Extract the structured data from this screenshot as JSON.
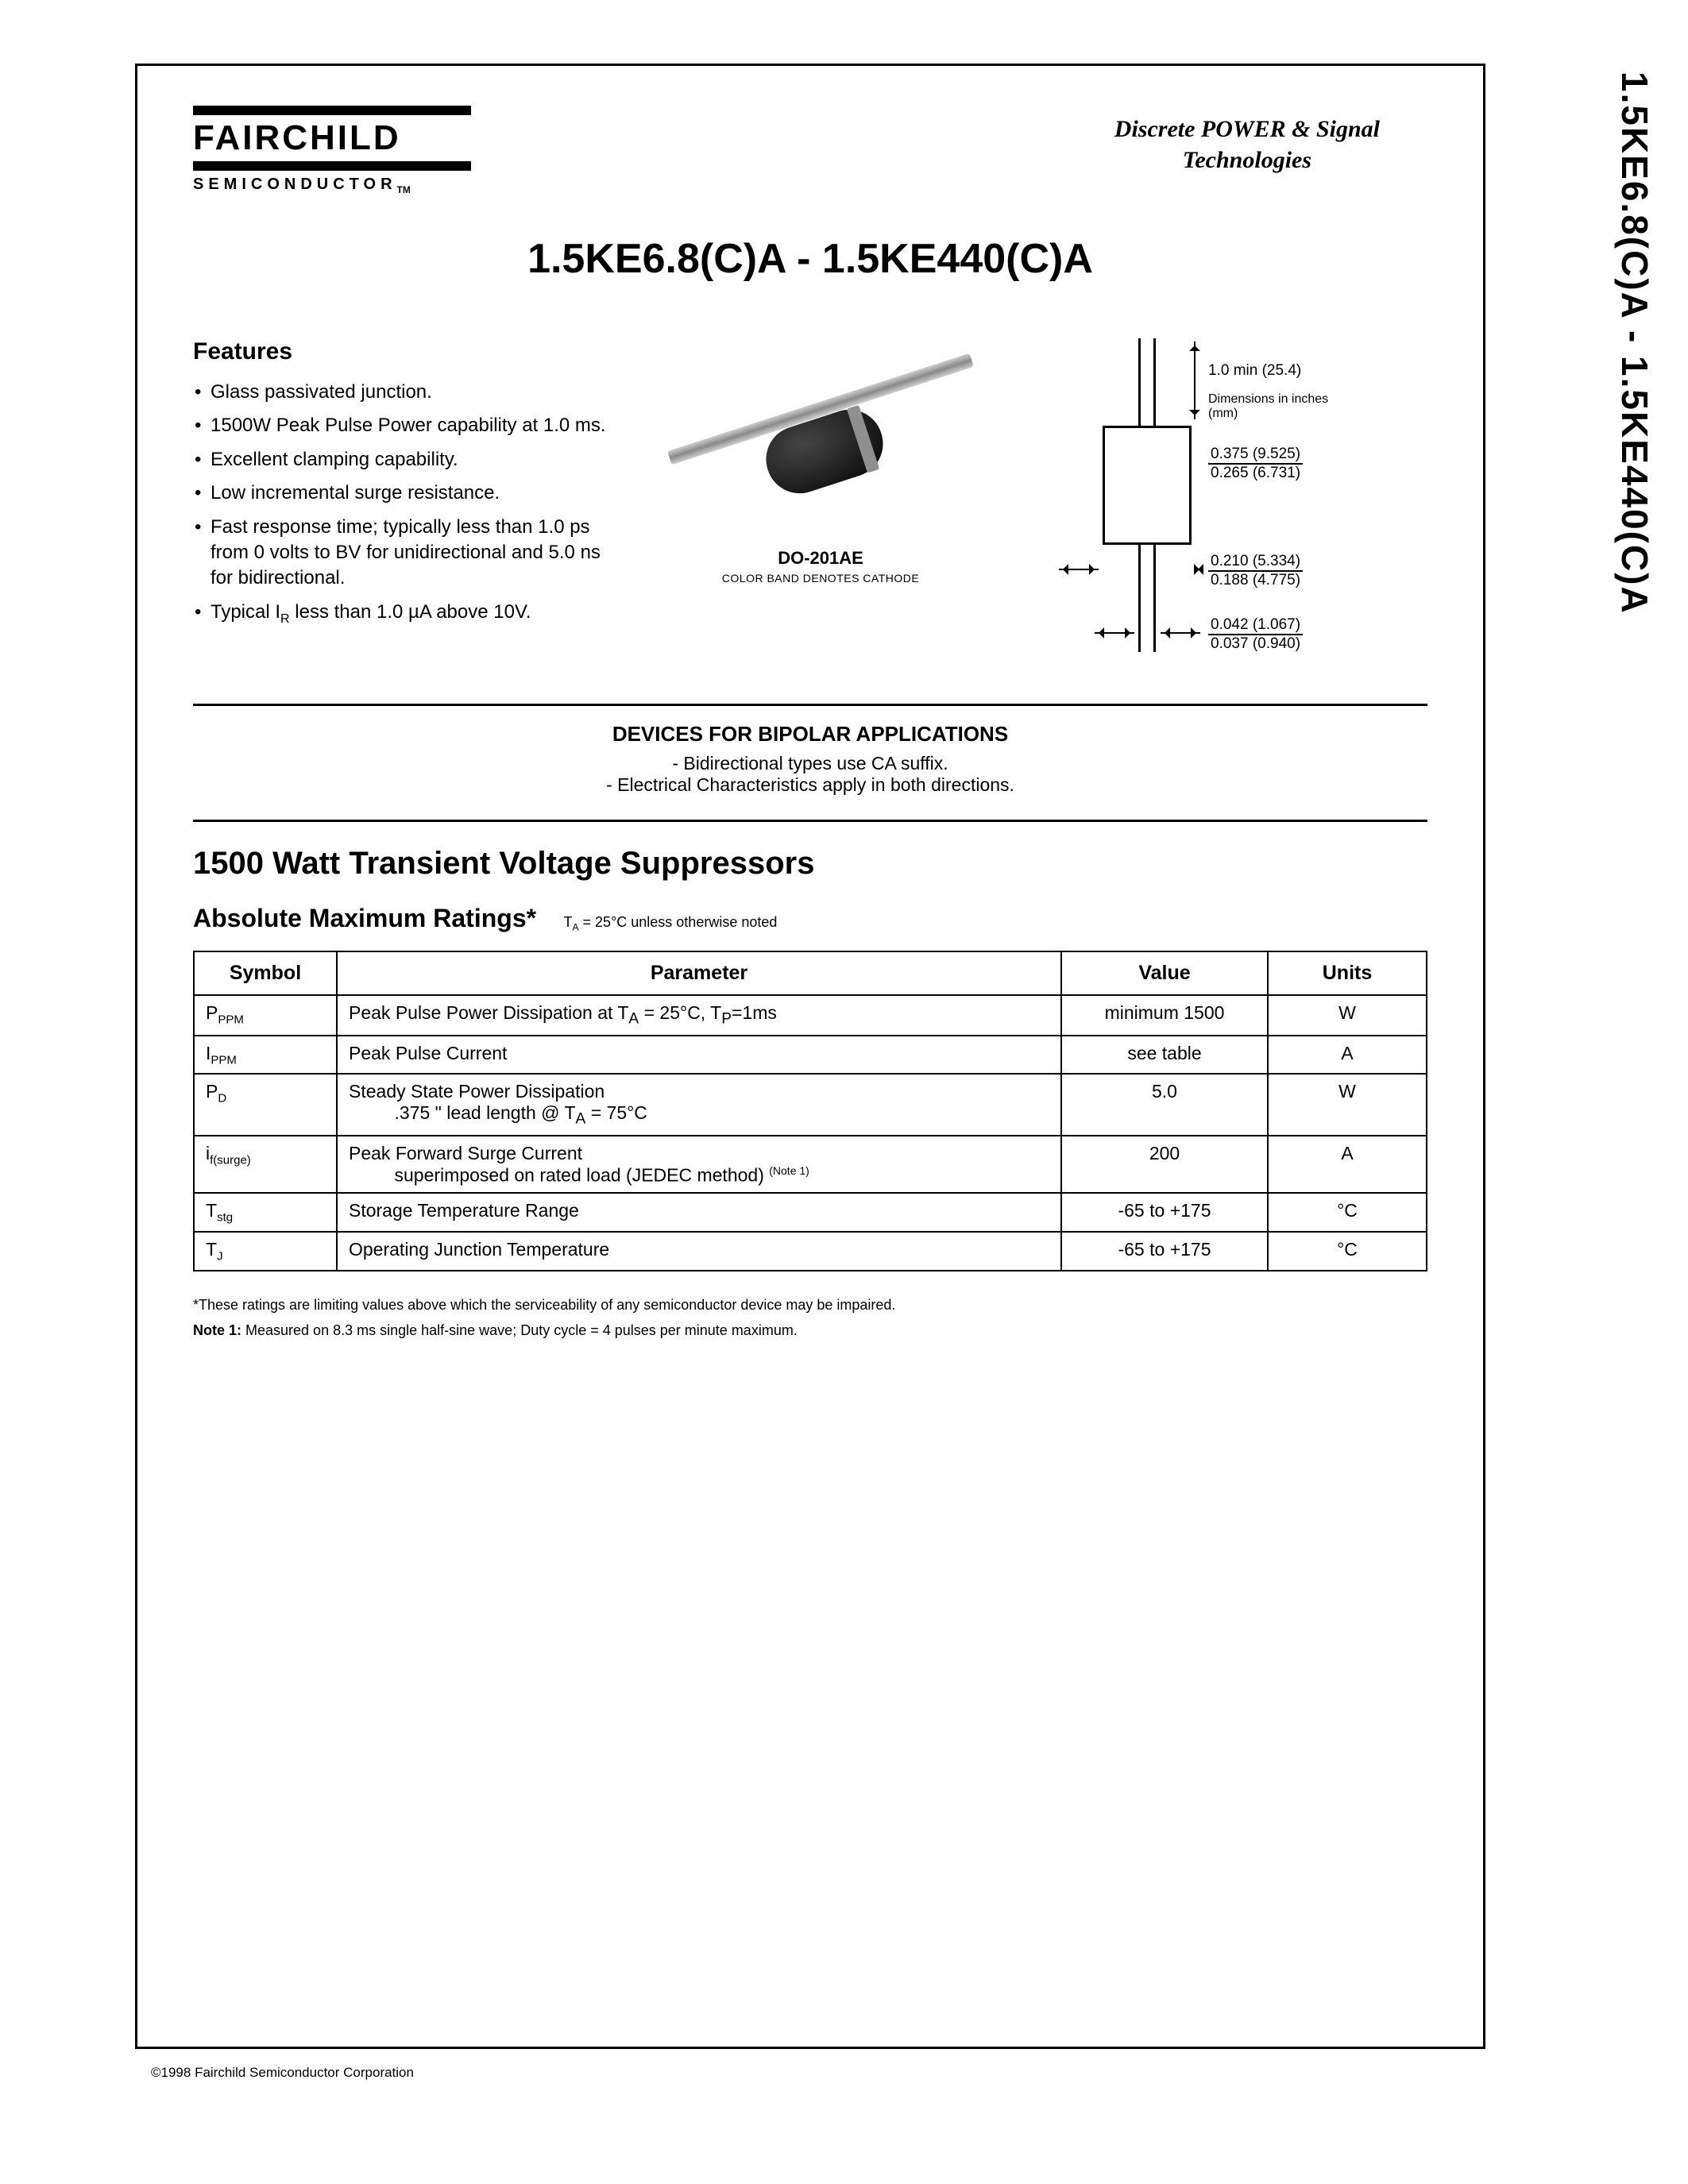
{
  "sideTitle": "1.5KE6.8(C)A - 1.5KE440(C)A",
  "logo": {
    "brand": "FAIRCHILD",
    "sub": "SEMICONDUCTOR",
    "tm": "TM"
  },
  "headerRight": {
    "line1": "Discrete POWER & Signal",
    "line2": "Technologies"
  },
  "title": "1.5KE6.8(C)A - 1.5KE440(C)A",
  "featuresHeading": "Features",
  "features": [
    "Glass passivated junction.",
    "1500W Peak Pulse Power capability at 1.0 ms.",
    "Excellent clamping capability.",
    "Low incremental surge resistance.",
    "Fast response time; typically less than 1.0 ps from 0 volts to BV for unidirectional and 5.0 ns for bidirectional.",
    "Typical IR less than 1.0 µA above 10V."
  ],
  "package": {
    "name": "DO-201AE",
    "note": "COLOR BAND DENOTES CATHODE"
  },
  "dimensions": {
    "leadLen": "1.0 min  (25.4)",
    "unitsNote": "Dimensions in inches (mm)",
    "bodyDia": {
      "top": "0.375  (9.525)",
      "bot": "0.265  (6.731)"
    },
    "bodyLen": {
      "top": "0.210  (5.334)",
      "bot": "0.188  (4.775)"
    },
    "leadDia": {
      "top": "0.042  (1.067)",
      "bot": "0.037  (0.940)"
    }
  },
  "bipolar": {
    "heading": "DEVICES FOR BIPOLAR APPLICATIONS",
    "line1": "- Bidirectional  types use CA suffix.",
    "line2": "- Electrical Characteristics apply in both directions."
  },
  "sectionTitle": "1500 Watt Transient Voltage Suppressors",
  "ratingsHeading": "Absolute Maximum Ratings*",
  "ratingsCond": "TA = 25°C unless otherwise noted",
  "tableHeaders": {
    "symbol": "Symbol",
    "parameter": "Parameter",
    "value": "Value",
    "units": "Units"
  },
  "rows": [
    {
      "sym": "P",
      "sub": "PPM",
      "param": "Peak Pulse Power Dissipation at TA = 25°C, TP=1ms",
      "value": "minimum 1500",
      "units": "W"
    },
    {
      "sym": "I",
      "sub": "PPM",
      "param": "Peak Pulse Current",
      "value": "see table",
      "units": "A"
    },
    {
      "sym": "P",
      "sub": "D",
      "param": "Steady State Power Dissipation\n          .375 \" lead length @ TA = 75°C",
      "value": "5.0",
      "units": "W"
    },
    {
      "sym": "i",
      "sub": "f(surge)",
      "param": "Peak Forward Surge Current\n          superimposed on rated load (JEDEC method)   (Note 1)",
      "value": "200",
      "units": "A"
    },
    {
      "sym": "T",
      "sub": "stg",
      "param": "Storage Temperature Range",
      "value": "-65 to +175",
      "units": "°C"
    },
    {
      "sym": "T",
      "sub": "J",
      "param": "Operating Junction Temperature",
      "value": "-65 to +175",
      "units": "°C"
    }
  ],
  "footnote1": "*These ratings are limiting values above which the serviceability of any semiconductor device may be impaired.",
  "footnote2": "Note 1: Measured on 8.3 ms single half-sine wave; Duty cycle = 4 pulses per minute maximum.",
  "copyright": "©1998 Fairchild Semiconductor Corporation",
  "colors": {
    "text": "#000000",
    "bg": "#ffffff",
    "rule": "#000000"
  }
}
